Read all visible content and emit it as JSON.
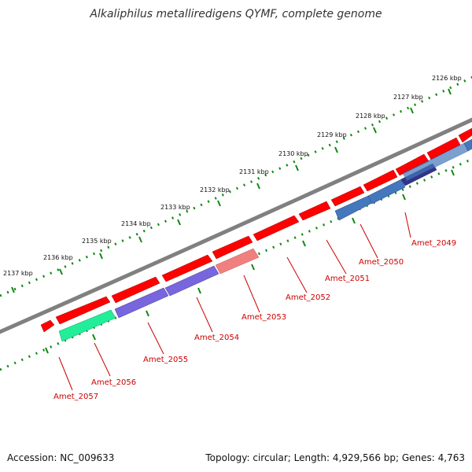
{
  "title": "Alkaliphilus metalliredigens QYMF, complete genome",
  "footer": {
    "accession": "Accession: NC_009633",
    "summary": "Topology: circular; Length: 4,929,566 bp; Genes: 4,763"
  },
  "colors": {
    "backbone": "#808080",
    "forward_gene": "#ff0000",
    "purple_gene": "#7766dd",
    "pink_gene": "#f08080",
    "green_gene": "#22ee99",
    "blue_gene": "#4477bb",
    "navy_gene": "#333388",
    "tick": "#118811",
    "label": "#cc0000"
  },
  "kbp_ticks": [
    {
      "kbp": 2126,
      "label": "2126 kbp"
    },
    {
      "kbp": 2127,
      "label": "2127 kbp"
    },
    {
      "kbp": 2128,
      "label": "2128 kbp"
    },
    {
      "kbp": 2129,
      "label": "2129 kbp"
    },
    {
      "kbp": 2130,
      "label": "2130 kbp"
    },
    {
      "kbp": 2131,
      "label": "2131 kbp"
    },
    {
      "kbp": 2132,
      "label": "2132 kbp"
    },
    {
      "kbp": 2133,
      "label": "2133 kbp"
    },
    {
      "kbp": 2134,
      "label": "2134 kbp"
    },
    {
      "kbp": 2135,
      "label": "2135 kbp"
    },
    {
      "kbp": 2136,
      "label": "2136 kbp"
    },
    {
      "kbp": 2137,
      "label": "2137 kbp"
    }
  ],
  "gene_labels": [
    "Amet_2049",
    "Amet_2050",
    "Amet_2051",
    "Amet_2052",
    "Amet_2053",
    "Amet_2054",
    "Amet_2055",
    "Amet_2056",
    "Amet_2057"
  ]
}
